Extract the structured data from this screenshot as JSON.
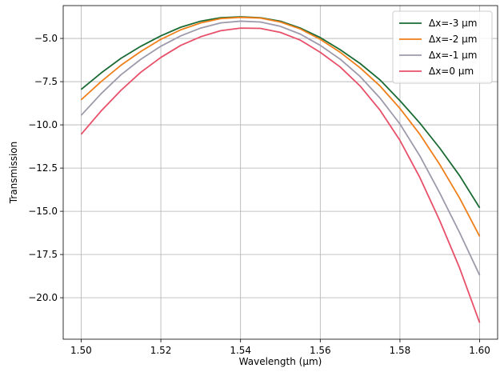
{
  "chart_data": {
    "type": "line",
    "title": "",
    "xlabel": "Wavelength (μm)",
    "ylabel": "Transmission",
    "xlim": [
      1.4955,
      1.6045
    ],
    "ylim": [
      -22.4,
      -3.1
    ],
    "xticks": [
      1.5,
      1.52,
      1.54,
      1.56,
      1.58,
      1.6
    ],
    "xtick_labels": [
      "1.50",
      "1.52",
      "1.54",
      "1.56",
      "1.58",
      "1.60"
    ],
    "yticks": [
      -5.0,
      -7.5,
      -10.0,
      -12.5,
      -15.0,
      -17.5,
      -20.0
    ],
    "ytick_labels": [
      "−5.0",
      "−7.5",
      "−10.0",
      "−12.5",
      "−15.0",
      "−17.5",
      "−20.0"
    ],
    "grid": true,
    "legend_position": "top-right",
    "x": [
      1.5,
      1.505,
      1.51,
      1.515,
      1.52,
      1.525,
      1.53,
      1.535,
      1.54,
      1.545,
      1.55,
      1.555,
      1.56,
      1.565,
      1.57,
      1.575,
      1.58,
      1.585,
      1.59,
      1.595,
      1.6
    ],
    "series": [
      {
        "name": "Δx=-3 μm",
        "color": "#1a6b34",
        "values": [
          -7.95,
          -7.0,
          -6.15,
          -5.45,
          -4.85,
          -4.35,
          -4.0,
          -3.8,
          -3.75,
          -3.8,
          -4.0,
          -4.4,
          -4.95,
          -5.65,
          -6.45,
          -7.4,
          -8.6,
          -9.9,
          -11.35,
          -12.95,
          -14.8
        ]
      },
      {
        "name": "Δx=-2 μm",
        "color": "#f07f1a",
        "values": [
          -8.55,
          -7.5,
          -6.55,
          -5.75,
          -5.05,
          -4.5,
          -4.1,
          -3.85,
          -3.78,
          -3.82,
          -4.05,
          -4.45,
          -5.05,
          -5.8,
          -6.7,
          -7.75,
          -9.05,
          -10.55,
          -12.3,
          -14.25,
          -16.45
        ]
      },
      {
        "name": "Δx=-1 μm",
        "color": "#9e9aab",
        "values": [
          -9.45,
          -8.2,
          -7.1,
          -6.2,
          -5.45,
          -4.85,
          -4.4,
          -4.1,
          -4.0,
          -4.05,
          -4.3,
          -4.75,
          -5.4,
          -6.2,
          -7.2,
          -8.45,
          -9.95,
          -11.8,
          -13.95,
          -16.25,
          -18.7
        ]
      },
      {
        "name": "Δx=0 μm",
        "color": "#e8506a",
        "values": [
          -10.55,
          -9.2,
          -8.0,
          -6.95,
          -6.1,
          -5.4,
          -4.9,
          -4.55,
          -4.4,
          -4.42,
          -4.65,
          -5.1,
          -5.8,
          -6.65,
          -7.75,
          -9.15,
          -10.9,
          -13.05,
          -15.55,
          -18.3,
          -21.45
        ]
      }
    ]
  }
}
